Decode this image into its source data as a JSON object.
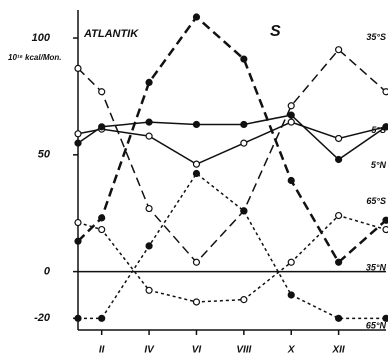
{
  "chart_data": {
    "type": "line",
    "title": "ATLANTIK",
    "annotation": "S",
    "ylabel": "10¹⁶ kcal/Mon.",
    "x": [
      1,
      2,
      4,
      6,
      8,
      10,
      12,
      14
    ],
    "xlim": [
      1,
      14
    ],
    "xticks": [
      {
        "value": 2,
        "label": "II"
      },
      {
        "value": 4,
        "label": "IV"
      },
      {
        "value": 6,
        "label": "VI"
      },
      {
        "value": 8,
        "label": "VIII"
      },
      {
        "value": 10,
        "label": "X"
      },
      {
        "value": 12,
        "label": "XII"
      }
    ],
    "ylim": [
      -25,
      112
    ],
    "yticks": [
      -20,
      0,
      50,
      100
    ],
    "series": [
      {
        "name": "35°S",
        "color": "#111",
        "style": "dashed",
        "marker": "open",
        "values": [
          87,
          77,
          27,
          4,
          26,
          71,
          95,
          77
        ]
      },
      {
        "name": "5°S",
        "color": "#111",
        "style": "solid",
        "marker": "open",
        "values": [
          59,
          61,
          58,
          46,
          55,
          64,
          57,
          62
        ]
      },
      {
        "name": "5°N",
        "color": "#111",
        "style": "solid",
        "marker": "filled",
        "values": [
          55,
          62,
          64,
          63,
          63,
          67,
          48,
          62
        ]
      },
      {
        "name": "65°S",
        "color": "#111",
        "style": "dotted",
        "marker": "open",
        "values": [
          21,
          18,
          -8,
          -13,
          -12,
          4,
          24,
          18
        ]
      },
      {
        "name": "35°N",
        "color": "#111",
        "style": "dashed",
        "marker": "filled",
        "values": [
          13,
          23,
          81,
          109,
          91,
          39,
          4,
          22
        ]
      },
      {
        "name": "65°N",
        "color": "#111",
        "style": "dotted",
        "marker": "filled",
        "values": [
          -20,
          -20,
          11,
          42,
          26,
          -10,
          -20,
          -20
        ]
      }
    ]
  }
}
